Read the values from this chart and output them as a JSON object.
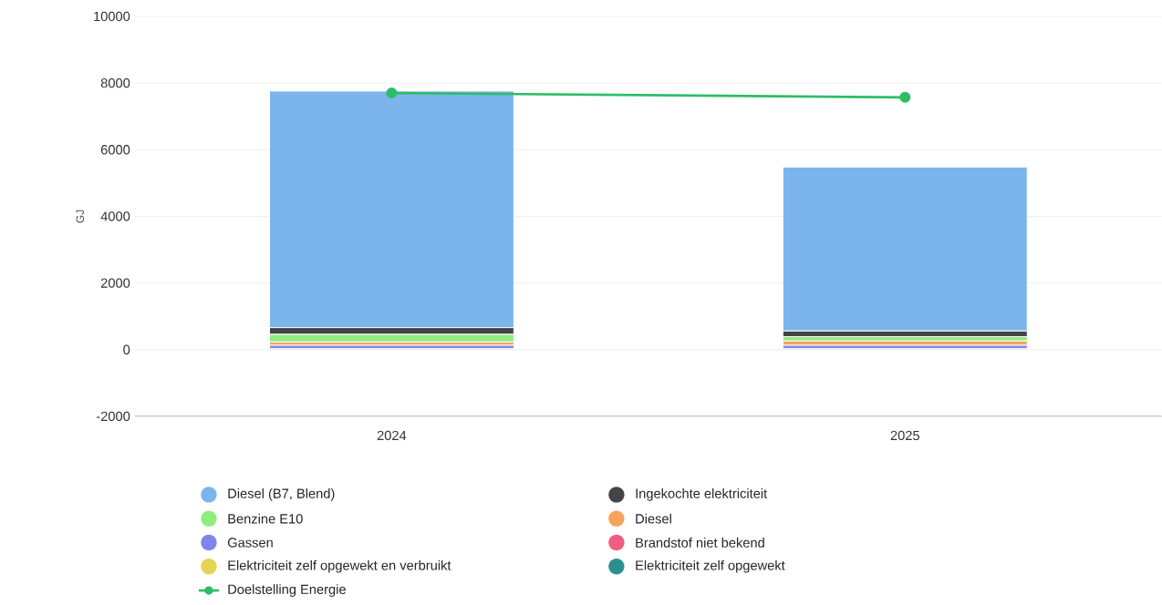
{
  "chart_data": {
    "type": "bar",
    "stacked": true,
    "ylabel": "GJ",
    "categories": [
      "2024",
      "2025"
    ],
    "series": [
      {
        "name": "Elektriciteit zelf opgewekt",
        "color": "#2b908f",
        "values": [
          30,
          30
        ]
      },
      {
        "name": "Elektriciteit zelf opgewekt en verbruikt",
        "color": "#e4d354",
        "values": [
          0,
          0
        ]
      },
      {
        "name": "Brandstof niet bekend",
        "color": "#f15c80",
        "values": [
          0,
          0
        ]
      },
      {
        "name": "Gassen",
        "color": "#8085e9",
        "values": [
          100,
          100
        ]
      },
      {
        "name": "Diesel",
        "color": "#f7a35c",
        "values": [
          100,
          130
        ]
      },
      {
        "name": "Benzine E10",
        "color": "#90ed7d",
        "values": [
          230,
          130
        ]
      },
      {
        "name": "Ingekochte elektriciteit",
        "color": "#434348",
        "values": [
          200,
          170
        ]
      },
      {
        "name": "Diesel (B7, Blend)",
        "color": "#7cb5ec",
        "values": [
          7100,
          4920
        ]
      },
      {
        "name": "Doelstelling Energie",
        "type": "line",
        "color": "#2ebd67",
        "values": [
          7700,
          7570
        ]
      }
    ],
    "ylim": [
      -2000,
      10000
    ],
    "yticks": [
      -2000,
      0,
      2000,
      4000,
      6000,
      8000,
      10000
    ],
    "grid": "y",
    "legend": "bottom",
    "marker": "circle"
  }
}
